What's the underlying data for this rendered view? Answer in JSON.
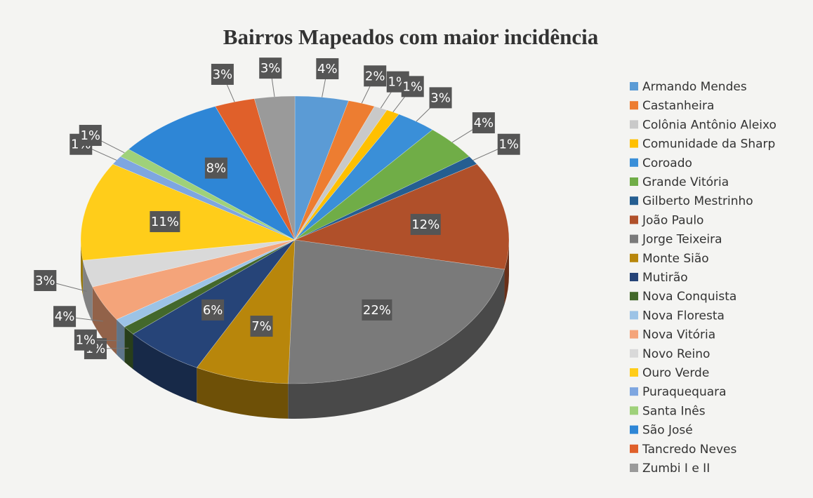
{
  "chart_data": {
    "type": "pie",
    "title": "Bairros Mapeados com maior incidência",
    "categories": [
      "Armando Mendes",
      "Castanheira",
      "Colônia Antônio Aleixo",
      "Comunidade da Sharp",
      "Coroado",
      "Grande Vitória",
      "Gilberto Mestrinho",
      "João Paulo",
      "Jorge Teixeira",
      "Monte Sião",
      "Mutirão",
      "Nova Conquista",
      "Nova Floresta",
      "Nova Vitória",
      "Novo Reino",
      "Ouro Verde",
      "Puraquequara",
      "Santa Inês",
      "São José",
      "Tancredo Neves",
      "Zumbi I e II"
    ],
    "values": [
      4,
      2,
      1,
      1,
      3,
      4,
      1,
      12,
      22,
      7,
      6,
      1,
      1,
      4,
      3,
      11,
      1,
      1,
      8,
      3,
      3
    ],
    "value_labels": [
      "4%",
      "2%",
      "1%",
      "1%",
      "3%",
      "4%",
      "1%",
      "12%",
      "22%",
      "7%",
      "6%",
      "1%",
      "1%",
      "4%",
      "3%",
      "11%",
      "1%",
      "1%",
      "8%",
      "3%",
      "3%"
    ],
    "colors": [
      "#5b9bd5",
      "#ed7d31",
      "#c9c9c9",
      "#ffc000",
      "#3a8fd8",
      "#70ad47",
      "#255e91",
      "#b0502a",
      "#7a7a7a",
      "#b8860b",
      "#264478",
      "#43682b",
      "#9cc3e6",
      "#f4a47a",
      "#d9d9d9",
      "#ffcd1a",
      "#7ea6e0",
      "#9fd17a",
      "#2e86d6",
      "#e0602a",
      "#9a9a9a"
    ]
  }
}
